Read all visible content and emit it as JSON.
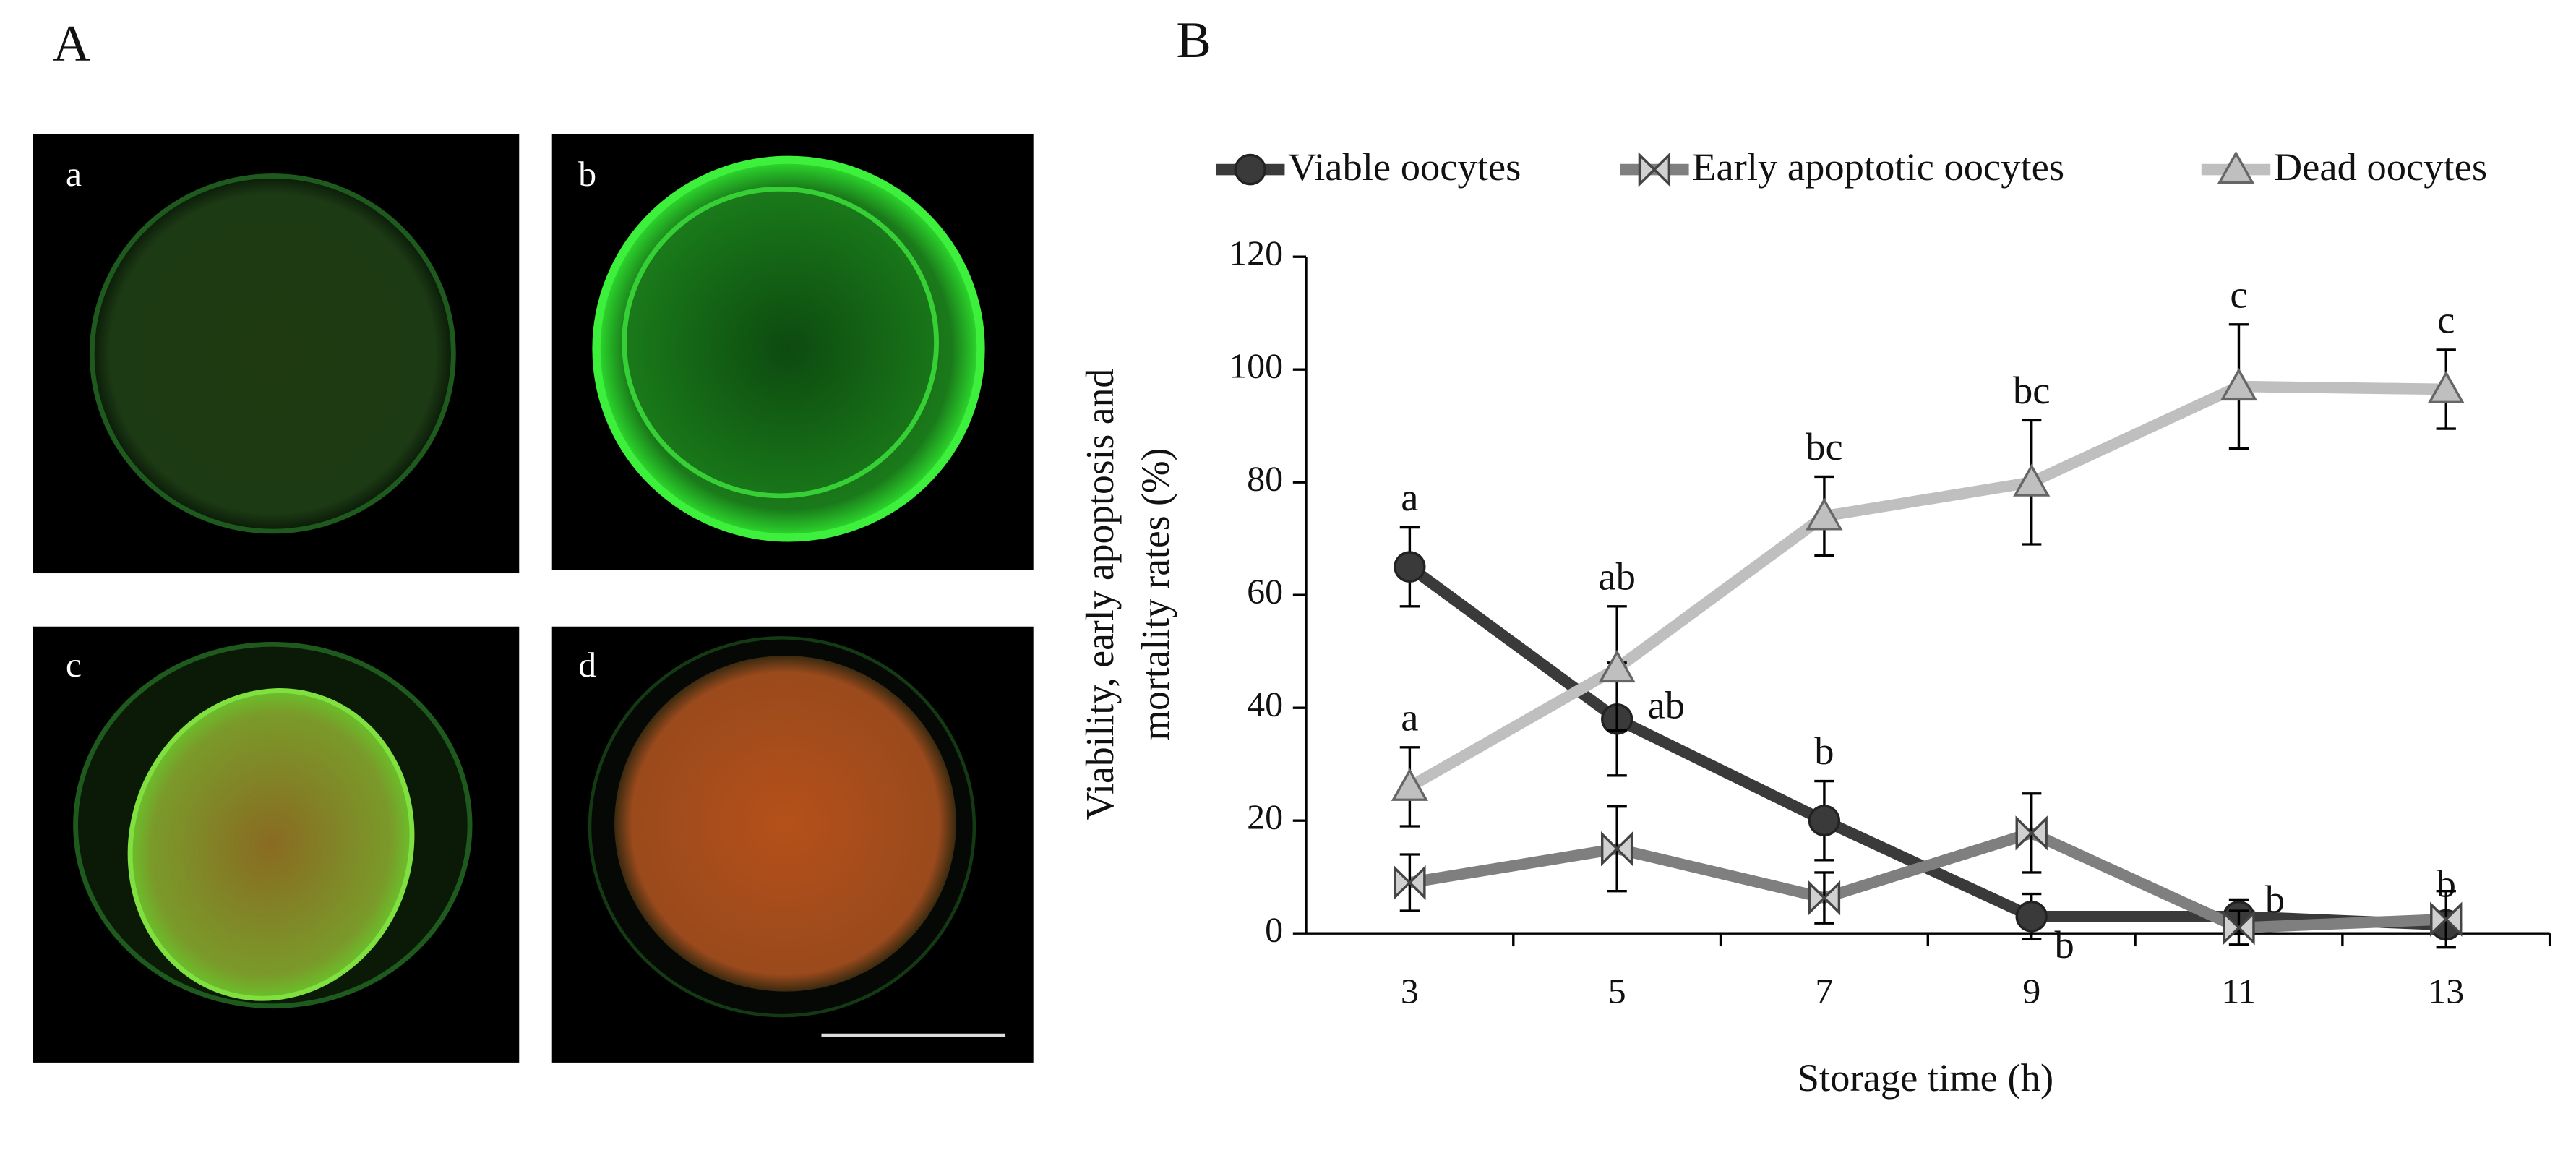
{
  "figure": {
    "panel_a": {
      "label": "A",
      "subpanels": [
        "a",
        "b",
        "c",
        "d"
      ]
    }
  },
  "chart_data": {
    "type": "line",
    "panel_label": "B",
    "xlabel": "Storage time (h)",
    "ylabel_lines": [
      "Viability, early apoptosis and",
      "mortality rates (%)"
    ],
    "categories": [
      "3",
      "5",
      "7",
      "9",
      "11",
      "13"
    ],
    "ylim": [
      0,
      120
    ],
    "yticks": [
      0,
      20,
      40,
      60,
      80,
      100,
      120
    ],
    "series": [
      {
        "name": "Viable oocytes",
        "color": "#3a3a3a",
        "marker": "circle",
        "values": [
          65,
          38,
          20,
          3,
          3,
          1.5
        ],
        "errors": [
          7,
          10,
          7,
          4,
          3,
          2
        ],
        "labels": [
          "a",
          "ab",
          "b",
          "b",
          "b",
          "b"
        ]
      },
      {
        "name": "Early apoptotic oocytes",
        "color": "#7f7f7f",
        "marker": "x",
        "values": [
          9,
          15,
          6.3,
          17.8,
          1,
          2.5
        ],
        "errors": [
          5,
          7.5,
          4.5,
          7,
          3,
          5
        ]
      },
      {
        "name": "Dead oocytes",
        "color": "#bfbfbf",
        "marker": "triangle",
        "values": [
          26,
          47,
          74,
          80,
          97,
          96.5
        ],
        "errors": [
          7,
          11,
          7,
          11,
          11,
          7
        ],
        "labels": [
          "a",
          "ab",
          "bc",
          "bc",
          "c",
          "c"
        ]
      }
    ]
  }
}
